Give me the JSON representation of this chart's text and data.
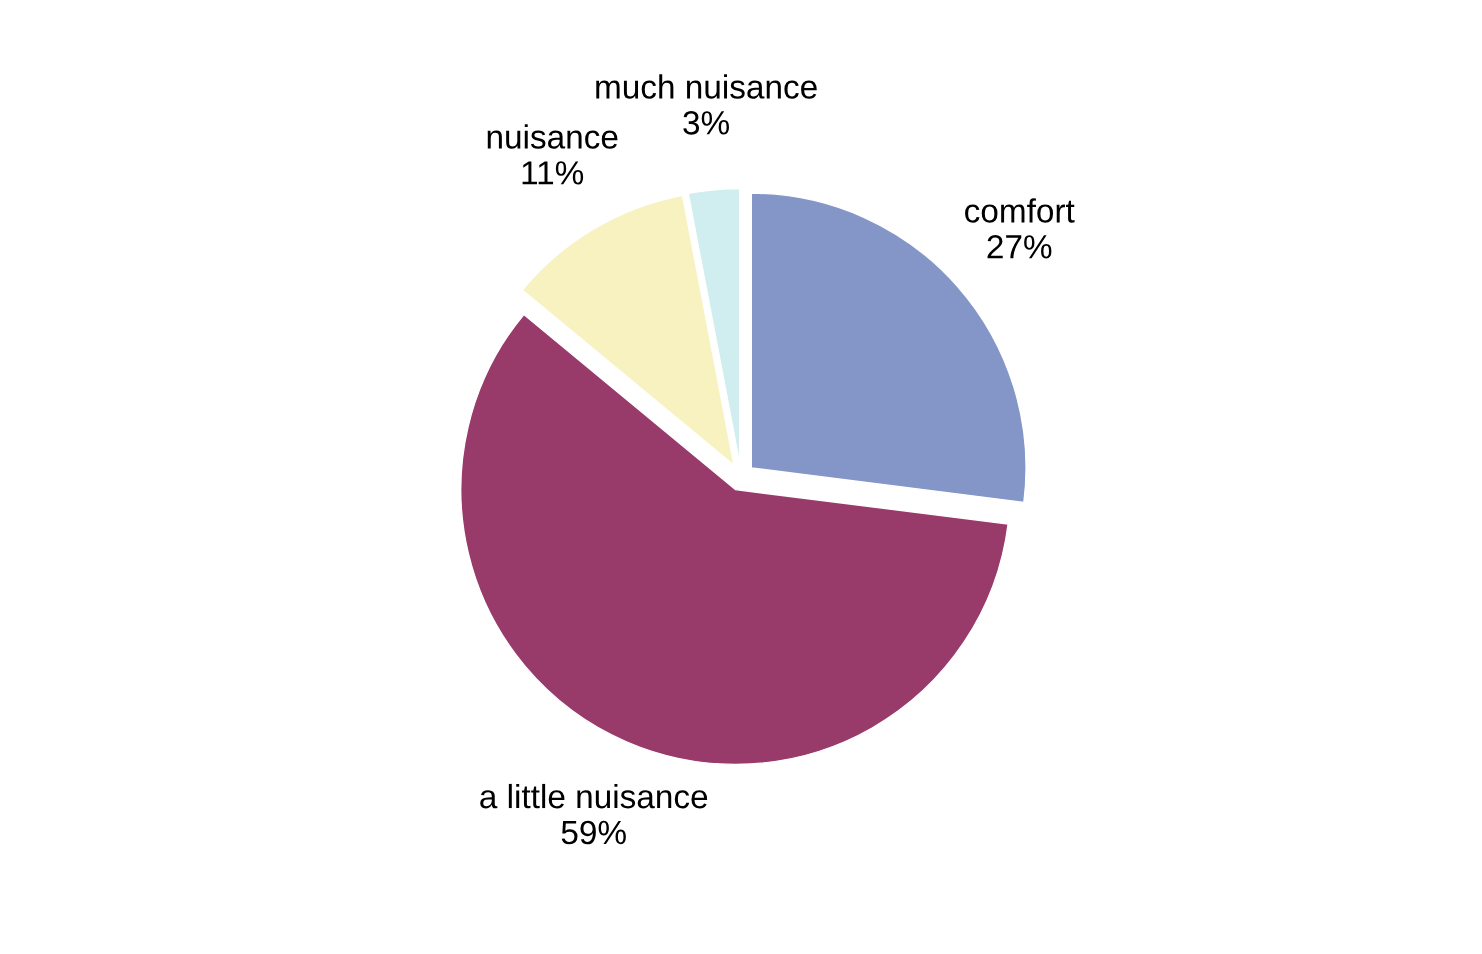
{
  "chart_data": {
    "type": "pie",
    "categories": [
      "comfort",
      "a little nuisance",
      "nuisance",
      "much nuisance"
    ],
    "values": [
      27,
      59,
      11,
      3
    ],
    "value_labels": [
      "27%",
      "59%",
      "11%",
      "3%"
    ],
    "colors": [
      "#8496c8",
      "#983a6a",
      "#f8f2c0",
      "#d0eef0"
    ]
  }
}
